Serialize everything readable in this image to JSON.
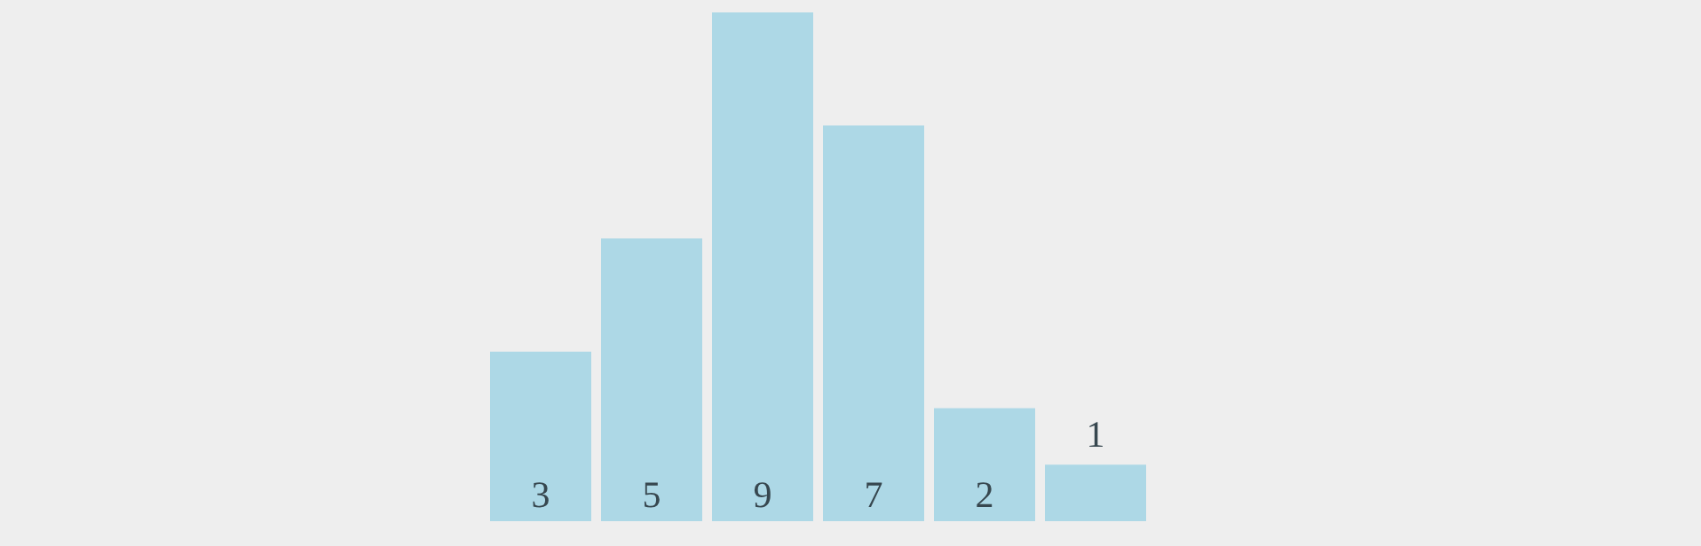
{
  "chart_data": {
    "type": "bar",
    "categories": [
      null,
      null,
      null,
      null,
      null,
      null
    ],
    "values": [
      3,
      5,
      9,
      7,
      2,
      1
    ],
    "color": "#add8e6",
    "data_labels": true
  }
}
